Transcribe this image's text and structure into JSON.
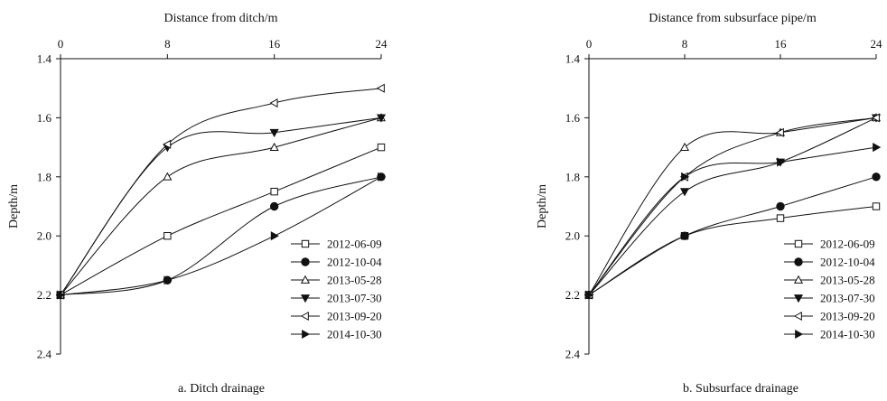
{
  "chart_data": [
    {
      "type": "line",
      "xlabel": "Distance from ditch/m",
      "ylabel": "Depth/m",
      "caption": "a. Ditch drainage",
      "x": [
        0,
        8,
        16,
        24
      ],
      "x_ticks": [
        "0",
        "8",
        "16",
        "24"
      ],
      "y_ticks": [
        "1.4",
        "1.6",
        "1.8",
        "2.0",
        "2.2",
        "2.4"
      ],
      "xlim": [
        0,
        24
      ],
      "ylim": [
        1.4,
        2.4
      ],
      "y_inverted": true,
      "x_axis_position": "top",
      "grid": false,
      "legend_position": "bottom-right",
      "series": [
        {
          "name": "2012-06-09",
          "marker": "square-open",
          "values": [
            2.2,
            2.0,
            1.85,
            1.7
          ]
        },
        {
          "name": "2012-10-04",
          "marker": "circle-filled",
          "values": [
            2.2,
            2.15,
            1.9,
            1.8
          ]
        },
        {
          "name": "2013-05-28",
          "marker": "triangle-up-open",
          "values": [
            2.2,
            1.8,
            1.7,
            1.6
          ]
        },
        {
          "name": "2013-07-30",
          "marker": "triangle-down-filled",
          "values": [
            2.2,
            1.7,
            1.65,
            1.6
          ]
        },
        {
          "name": "2013-09-20",
          "marker": "triangle-left-open",
          "values": [
            2.2,
            1.69,
            1.55,
            1.5
          ]
        },
        {
          "name": "2014-10-30",
          "marker": "triangle-right-filled",
          "values": [
            2.2,
            2.15,
            2.0,
            1.8
          ]
        }
      ]
    },
    {
      "type": "line",
      "xlabel": "Distance from subsurface pipe/m",
      "ylabel": "Depth/m",
      "caption": "b. Subsurface drainage",
      "x": [
        0,
        8,
        16,
        24
      ],
      "x_ticks": [
        "0",
        "8",
        "16",
        "24"
      ],
      "y_ticks": [
        "1.4",
        "1.6",
        "1.8",
        "2.0",
        "2.2",
        "2.4"
      ],
      "xlim": [
        0,
        24
      ],
      "ylim": [
        1.4,
        2.4
      ],
      "y_inverted": true,
      "x_axis_position": "top",
      "grid": false,
      "legend_position": "bottom-right",
      "series": [
        {
          "name": "2012-06-09",
          "marker": "square-open",
          "values": [
            2.2,
            2.0,
            1.94,
            1.9
          ]
        },
        {
          "name": "2012-10-04",
          "marker": "circle-filled",
          "values": [
            2.2,
            2.0,
            1.9,
            1.8
          ]
        },
        {
          "name": "2013-05-28",
          "marker": "triangle-up-open",
          "values": [
            2.2,
            1.7,
            1.65,
            1.6
          ]
        },
        {
          "name": "2013-07-30",
          "marker": "triangle-down-filled",
          "values": [
            2.2,
            1.85,
            1.75,
            1.6
          ]
        },
        {
          "name": "2013-09-20",
          "marker": "triangle-left-open",
          "values": [
            2.2,
            1.8,
            1.65,
            1.6
          ]
        },
        {
          "name": "2014-10-30",
          "marker": "triangle-right-filled",
          "values": [
            2.2,
            1.8,
            1.75,
            1.7
          ]
        }
      ]
    }
  ]
}
